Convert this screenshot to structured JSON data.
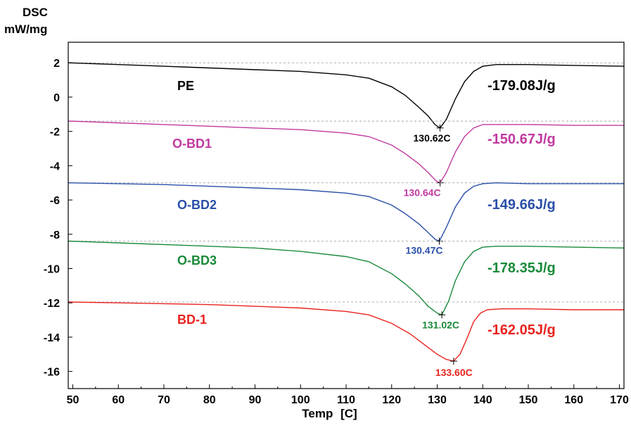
{
  "chart_data": {
    "type": "line",
    "title": "",
    "ylabel_lines": [
      "DSC",
      "mW/mg"
    ],
    "xlabel": "Temp   [C]",
    "xlim": [
      49,
      171
    ],
    "ylim": [
      -17,
      3.2
    ],
    "xticks": [
      50,
      60,
      70,
      80,
      90,
      100,
      110,
      120,
      130,
      140,
      150,
      160,
      170
    ],
    "yticks": [
      2,
      0,
      -2,
      -4,
      -6,
      -8,
      -10,
      -12,
      -14,
      -16
    ],
    "series": [
      {
        "name": "PE",
        "color": "#000000",
        "baseline": 2.0,
        "peak": {
          "x": 130.62,
          "y": -1.8,
          "label": "130.62C"
        },
        "enthalpy": "-179.08J/g",
        "points": [
          [
            49,
            2.0
          ],
          [
            60,
            1.9
          ],
          [
            70,
            1.8
          ],
          [
            80,
            1.7
          ],
          [
            90,
            1.6
          ],
          [
            100,
            1.5
          ],
          [
            110,
            1.3
          ],
          [
            115,
            1.1
          ],
          [
            120,
            0.6
          ],
          [
            123,
            0.1
          ],
          [
            126,
            -0.6
          ],
          [
            128,
            -1.1
          ],
          [
            129.5,
            -1.6
          ],
          [
            130.62,
            -1.8
          ],
          [
            132,
            -1.3
          ],
          [
            134,
            -0.1
          ],
          [
            136,
            0.9
          ],
          [
            138,
            1.5
          ],
          [
            140,
            1.8
          ],
          [
            143,
            1.9
          ],
          [
            150,
            1.9
          ],
          [
            160,
            1.85
          ],
          [
            171,
            1.8
          ]
        ]
      },
      {
        "name": "O-BD1",
        "color": "#c0399e",
        "baseline": -1.4,
        "peak": {
          "x": 130.64,
          "y": -5.0,
          "label": "130.64C"
        },
        "enthalpy": "-150.67J/g",
        "points": [
          [
            49,
            -1.4
          ],
          [
            60,
            -1.5
          ],
          [
            70,
            -1.6
          ],
          [
            80,
            -1.7
          ],
          [
            90,
            -1.8
          ],
          [
            100,
            -1.9
          ],
          [
            110,
            -2.1
          ],
          [
            115,
            -2.3
          ],
          [
            120,
            -2.8
          ],
          [
            123,
            -3.3
          ],
          [
            126,
            -3.9
          ],
          [
            128,
            -4.4
          ],
          [
            129.8,
            -4.9
          ],
          [
            130.64,
            -5.0
          ],
          [
            132,
            -4.4
          ],
          [
            134,
            -3.2
          ],
          [
            136,
            -2.3
          ],
          [
            138,
            -1.8
          ],
          [
            140,
            -1.6
          ],
          [
            143,
            -1.6
          ],
          [
            150,
            -1.6
          ],
          [
            160,
            -1.65
          ],
          [
            171,
            -1.65
          ]
        ]
      },
      {
        "name": "O-BD2",
        "color": "#2a4fa8",
        "baseline": -5.0,
        "peak": {
          "x": 130.47,
          "y": -8.4,
          "label": "130.47C"
        },
        "enthalpy": "-149.66J/g",
        "points": [
          [
            49,
            -5.0
          ],
          [
            60,
            -5.05
          ],
          [
            70,
            -5.1
          ],
          [
            80,
            -5.2
          ],
          [
            90,
            -5.3
          ],
          [
            100,
            -5.4
          ],
          [
            110,
            -5.6
          ],
          [
            115,
            -5.8
          ],
          [
            120,
            -6.3
          ],
          [
            123,
            -6.8
          ],
          [
            126,
            -7.4
          ],
          [
            128,
            -7.9
          ],
          [
            129.6,
            -8.3
          ],
          [
            130.47,
            -8.4
          ],
          [
            132,
            -7.6
          ],
          [
            134,
            -6.4
          ],
          [
            136,
            -5.6
          ],
          [
            138,
            -5.2
          ],
          [
            140,
            -5.05
          ],
          [
            143,
            -5.0
          ],
          [
            150,
            -5.05
          ],
          [
            160,
            -5.05
          ],
          [
            171,
            -5.05
          ]
        ]
      },
      {
        "name": "O-BD3",
        "color": "#1a8a3a",
        "baseline": -8.4,
        "peak": {
          "x": 131.02,
          "y": -12.7,
          "label": "131.02C"
        },
        "enthalpy": "-178.35J/g",
        "points": [
          [
            49,
            -8.4
          ],
          [
            60,
            -8.5
          ],
          [
            70,
            -8.6
          ],
          [
            80,
            -8.7
          ],
          [
            90,
            -8.8
          ],
          [
            100,
            -9.0
          ],
          [
            110,
            -9.3
          ],
          [
            115,
            -9.6
          ],
          [
            120,
            -10.3
          ],
          [
            123,
            -10.9
          ],
          [
            126,
            -11.6
          ],
          [
            128,
            -12.2
          ],
          [
            130,
            -12.6
          ],
          [
            131.02,
            -12.7
          ],
          [
            132.5,
            -11.9
          ],
          [
            134,
            -10.7
          ],
          [
            136,
            -9.6
          ],
          [
            138,
            -9.0
          ],
          [
            140,
            -8.75
          ],
          [
            143,
            -8.7
          ],
          [
            150,
            -8.7
          ],
          [
            160,
            -8.75
          ],
          [
            171,
            -8.8
          ]
        ]
      },
      {
        "name": "BD-1",
        "color": "#e8231e",
        "baseline": -11.95,
        "peak": {
          "x": 133.6,
          "y": -15.4,
          "label": "133.60C"
        },
        "enthalpy": "-162.05J/g",
        "points": [
          [
            49,
            -11.95
          ],
          [
            60,
            -12.0
          ],
          [
            70,
            -12.05
          ],
          [
            80,
            -12.1
          ],
          [
            90,
            -12.2
          ],
          [
            100,
            -12.3
          ],
          [
            110,
            -12.5
          ],
          [
            115,
            -12.7
          ],
          [
            120,
            -13.2
          ],
          [
            124,
            -13.8
          ],
          [
            127,
            -14.4
          ],
          [
            130,
            -15.0
          ],
          [
            132,
            -15.3
          ],
          [
            133.6,
            -15.4
          ],
          [
            135,
            -15.0
          ],
          [
            136.5,
            -14.1
          ],
          [
            138,
            -13.1
          ],
          [
            139.5,
            -12.6
          ],
          [
            141,
            -12.4
          ],
          [
            144,
            -12.35
          ],
          [
            150,
            -12.35
          ],
          [
            160,
            -12.4
          ],
          [
            171,
            -12.4
          ]
        ]
      }
    ],
    "grid": false
  }
}
